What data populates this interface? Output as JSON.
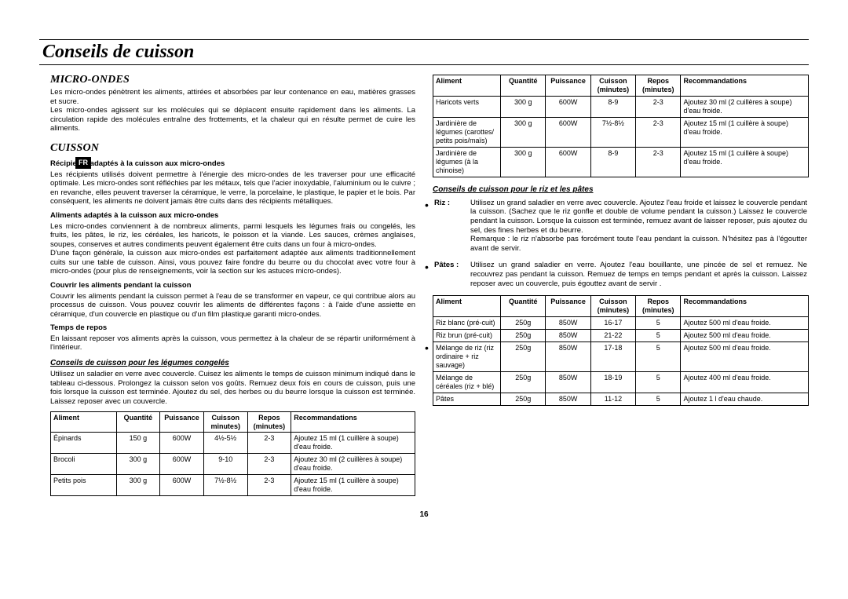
{
  "page_title": "Conseils de cuisson",
  "lang_tag": "FR",
  "page_number": "16",
  "left": {
    "h_micro": "MICRO-ONDES",
    "p_micro": "Les micro-ondes pénètrent les aliments, attirées et absorbées par leur contenance en eau, matières grasses et sucre.\nLes micro-ondes agissent sur les molécules qui se déplacent ensuite rapidement dans les aliments. La circulation rapide des molécules entraîne des frottements, et la chaleur qui en résulte permet de cuire les aliments.",
    "h_cuisson": "CUISSON",
    "b_recip": "Récipients adaptés à la cuisson aux micro-ondes",
    "p_recip": "Les récipients utilisés doivent permettre à l'énergie des micro-ondes de les traverser pour une efficacité optimale. Les micro-ondes sont réfléchies par les métaux, tels que l'acier inoxydable, l'aluminium ou le cuivre ; en revanche, elles peuvent traverser la céramique, le verre, la porcelaine, le plastique, le papier et le bois. Par conséquent, les aliments ne doivent jamais être cuits dans des récipients métalliques.",
    "b_alim": "Aliments adaptés à la cuisson aux micro-ondes",
    "p_alim": "Les micro-ondes conviennent à de nombreux aliments, parmi lesquels les légumes frais ou congelés, les fruits, les pâtes, le riz, les céréales, les haricots, le poisson et la viande. Les sauces, crèmes anglaises, soupes, conserves et autres condiments peuvent également être cuits dans un four à micro-ondes.\nD'une façon générale, la cuisson aux micro-ondes est parfaitement adaptée aux aliments traditionnellement cuits sur une table de cuisson. Ainsi, vous pouvez faire fondre du beurre ou du chocolat avec votre four à micro-ondes (pour plus de renseignements, voir la section sur les astuces micro-ondes).",
    "b_couvrir": "Couvrir les aliments pendant la cuisson",
    "p_couvrir": "Couvrir les aliments pendant la cuisson permet à l'eau de se transformer en vapeur, ce qui contribue alors au processus de cuisson. Vous pouvez couvrir les aliments de différentes façons : à l'aide d'une assiette en céramique, d'un couvercle en plastique ou d'un film plastique garanti micro-ondes.",
    "b_repos": "Temps de repos",
    "p_repos": "En laissant reposer vos aliments après la cuisson, vous permettez à la chaleur de se répartir uniformément à l'intérieur.",
    "b_leg": "Conseils de cuisson pour les légumes congelés",
    "p_leg": "Utilisez un saladier en verre avec couvercle. Cuisez les aliments le temps de cuisson minimum indiqué dans le tableau ci-dessous. Prolongez la cuisson selon vos goûts. Remuez deux fois en cours de cuisson, puis une fois lorsque la cuisson est terminée. Ajoutez du sel, des herbes ou du beurre lorsque la cuisson est terminée. Laissez reposer avec un couvercle.",
    "table1": {
      "headers": [
        "Aliment",
        "Quantité",
        "Puissance",
        "Cuisson\nminutes)",
        "Repos\n(minutes)",
        "Recommandations"
      ],
      "rows": [
        [
          "Épinards",
          "150 g",
          "600W",
          "4½-5½",
          "2-3",
          "Ajoutez 15 ml (1 cuillère à soupe) d'eau froide."
        ],
        [
          "Brocoli",
          "300 g",
          "600W",
          "9-10",
          "2-3",
          "Ajoutez 30 ml (2 cuillères à soupe) d'eau froide."
        ],
        [
          "Petits pois",
          "300 g",
          "600W",
          "7½-8½",
          "2-3",
          "Ajoutez 15 ml (1 cuillère à soupe) d'eau froide."
        ]
      ]
    }
  },
  "right": {
    "table2": {
      "headers": [
        "Aliment",
        "Quantité",
        "Puissance",
        "Cuisson\n(minutes)",
        "Repos\n(minutes)",
        "Recommandations"
      ],
      "rows": [
        [
          "Haricots verts",
          "300 g",
          "600W",
          "8-9",
          "2-3",
          "Ajoutez 30 ml (2 cuillères à soupe) d'eau froide."
        ],
        [
          "Jardinière de légumes (carottes/ petits pois/maïs)",
          "300 g",
          "600W",
          "7½-8½",
          "2-3",
          "Ajoutez 15 ml (1 cuillère à soupe) d'eau froide."
        ],
        [
          "Jardinière de légumes (à la chinoise)",
          "300 g",
          "600W",
          "8-9",
          "2-3",
          "Ajoutez 15 ml (1 cuillère à soupe) d'eau froide."
        ]
      ]
    },
    "b_rizpates": "Conseils de cuisson pour le riz et les pâtes",
    "def_riz_k": "Riz :",
    "def_riz_v": "Utilisez un grand saladier en verre avec couvercle. Ajoutez l'eau froide et laissez le couvercle pendant la cuisson. (Sachez que le riz gonfle et double de volume pendant la cuisson.) Laissez le couvercle pendant la cuisson. Lorsque la cuisson est terminée, remuez avant de laisser reposer, puis ajoutez du sel, des fines herbes et du beurre.\nRemarque : le riz n'absorbe pas forcément toute l'eau pendant la cuisson. N'hésitez pas à l'égoutter avant de servir.",
    "def_pates_k": "Pâtes :",
    "def_pates_v": "Utilisez un grand saladier en verre. Ajoutez l'eau bouillante, une pincée de sel et remuez. Ne recouvrez pas pendant la cuisson. Remuez de temps en temps pendant et après la cuisson. Laissez reposer avec un couvercle, puis égouttez avant de servir .",
    "table3": {
      "headers": [
        "Aliment",
        "Quantité",
        "Puissance",
        "Cuisson\n(minutes)",
        "Repos\n(minutes)",
        "Recommandations"
      ],
      "rows": [
        [
          "Riz blanc (pré-cuit)",
          "250g",
          "850W",
          "16-17",
          "5",
          "Ajoutez 500 ml d'eau froide."
        ],
        [
          "Riz brun (pré-cuit)",
          "250g",
          "850W",
          "21-22",
          "5",
          "Ajoutez 500 ml d'eau froide."
        ],
        [
          "Mélange de riz (riz ordinaire + riz sauvage)",
          "250g",
          "850W",
          "17-18",
          "5",
          "Ajoutez 500 ml d'eau froide."
        ],
        [
          "Mélange de céréales (riz + blé)",
          "250g",
          "850W",
          "18-19",
          "5",
          "Ajoutez 400 ml d'eau froide."
        ],
        [
          "Pâtes",
          "250g",
          "850W",
          "11-12",
          "5",
          "Ajoutez 1 l d'eau chaude."
        ]
      ]
    }
  }
}
